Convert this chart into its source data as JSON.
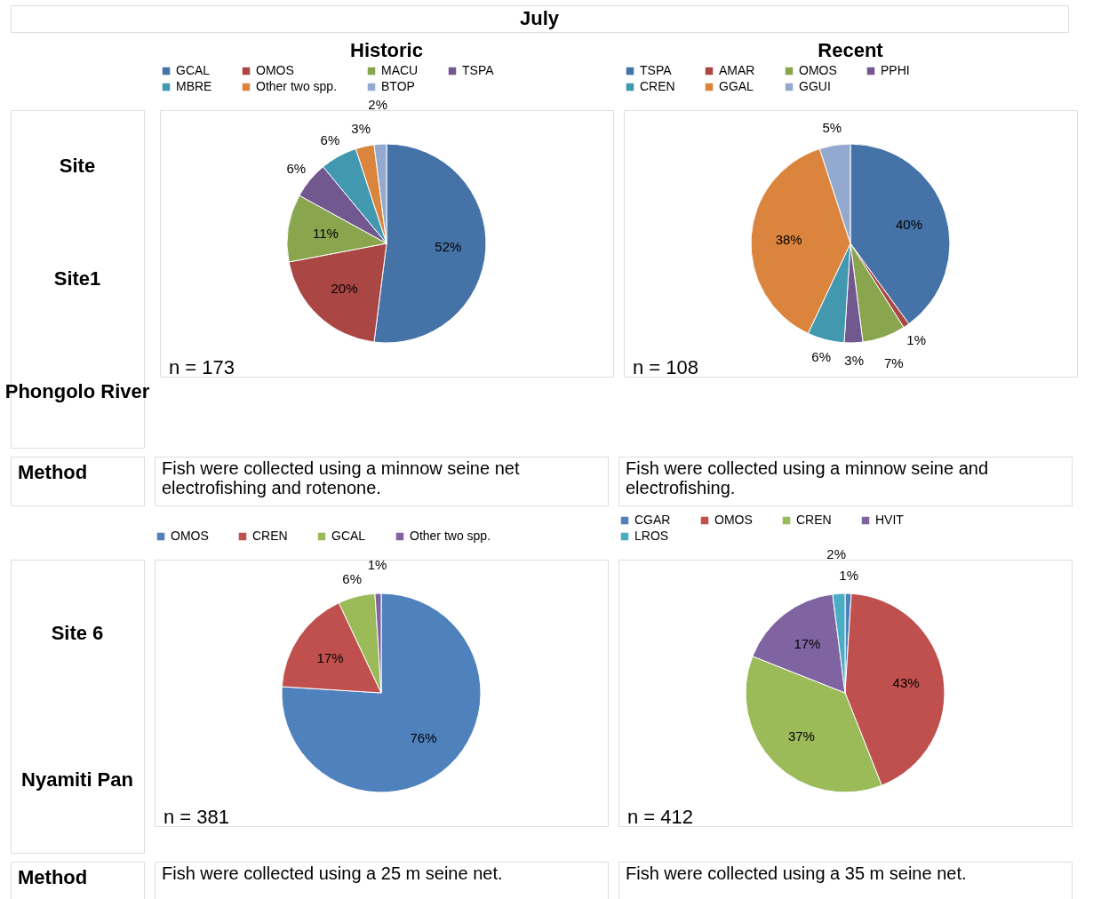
{
  "chart_data": [
    {
      "type": "other",
      "annotations": [
        "July"
      ]
    },
    {
      "type": "other",
      "annotations": [
        "Site",
        "Site1",
        "Phongolo River"
      ]
    },
    {
      "type": "pie",
      "title": "Historic",
      "legend": "top",
      "categories": [
        "GCAL",
        "OMOS",
        "MACU",
        "TSPA",
        "MBRE",
        "Other two spp.",
        "BTOP"
      ],
      "values": [
        52,
        20,
        11,
        6,
        6,
        3,
        2
      ],
      "value_labels": [
        "52%",
        "20%",
        "11%",
        "6%",
        "6%",
        "3%",
        "2%"
      ],
      "colors": [
        "#4572a7",
        "#aa4643",
        "#89a54e",
        "#71588f",
        "#4198af",
        "#db843d",
        "#93a9cf"
      ],
      "annotations": [
        "n = 173"
      ]
    },
    {
      "type": "pie",
      "title": "Recent",
      "legend": "top",
      "categories": [
        "TSPA",
        "AMAR",
        "OMOS",
        "PPHI",
        "CREN",
        "GGAL",
        "GGUI"
      ],
      "values": [
        40,
        1,
        7,
        3,
        6,
        38,
        5
      ],
      "value_labels": [
        "40%",
        "1%",
        "7%",
        "3%",
        "6%",
        "38%",
        "5%"
      ],
      "colors": [
        "#4572a7",
        "#aa4643",
        "#89a54e",
        "#71588f",
        "#4198af",
        "#db843d",
        "#93a9cf"
      ],
      "annotations": [
        "n = 108"
      ]
    },
    {
      "type": "other",
      "annotations": [
        "Method",
        "Fish were collected using a minnow seine net electrofishing and rotenone.",
        "Fish were collected using a minnow seine and electrofishing."
      ]
    },
    {
      "type": "other",
      "annotations": [
        "Site 6",
        "Nyamiti Pan"
      ]
    },
    {
      "type": "pie",
      "legend": "top",
      "categories": [
        "OMOS",
        "CREN",
        "GCAL",
        "Other two spp."
      ],
      "values": [
        76,
        17,
        6,
        1
      ],
      "value_labels": [
        "76%",
        "17%",
        "6%",
        "1%"
      ],
      "colors": [
        "#4f81bd",
        "#c0504d",
        "#9bbb59",
        "#8064a2"
      ],
      "annotations": [
        "n = 381"
      ]
    },
    {
      "type": "pie",
      "legend": "top",
      "categories": [
        "CGAR",
        "OMOS",
        "CREN",
        "HVIT",
        "LROS"
      ],
      "values": [
        1,
        43,
        37,
        17,
        2
      ],
      "value_labels": [
        "1%",
        "43%",
        "37%",
        "17%",
        "2%"
      ],
      "colors": [
        "#4f81bd",
        "#c0504d",
        "#9bbb59",
        "#8064a2",
        "#4bacc6"
      ],
      "annotations": [
        "n = 412"
      ]
    },
    {
      "type": "other",
      "annotations": [
        "Method",
        "Fish were collected using a 25 m seine net.",
        "Fish were collected using a 35 m seine net."
      ]
    }
  ]
}
